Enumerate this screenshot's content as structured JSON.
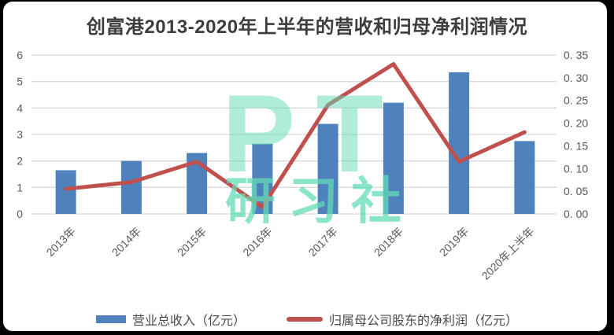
{
  "watermark": {
    "line1": "PT",
    "line2": "研习社"
  },
  "colors": {
    "bar": "#4f81bd",
    "line": "#c0504d",
    "watermark": "#63dbb7",
    "grid": "#d9d9d9",
    "axis_text": "#595959",
    "title_text": "#3d3d3d",
    "frame": "#000000",
    "card_bg": "#ffffff"
  },
  "chart_data": {
    "type": "bar",
    "subtype": "combo-bar-line",
    "title": "创富港2013-2020年上半年的营收和归母净利润情况",
    "categories": [
      "2013年",
      "2014年",
      "2015年",
      "2016年",
      "2017年",
      "2018年",
      "2019年",
      "2020年上半年"
    ],
    "series": [
      {
        "name": "营业总收入（亿元）",
        "type": "bar",
        "axis": "left",
        "color": "#4f81bd",
        "values": [
          1.65,
          2.0,
          2.3,
          2.65,
          3.4,
          4.2,
          5.35,
          2.75
        ]
      },
      {
        "name": "归属母公司股东的净利润（亿元）",
        "type": "line",
        "axis": "right",
        "color": "#c0504d",
        "values": [
          0.055,
          0.07,
          0.115,
          0.015,
          0.24,
          0.33,
          0.115,
          0.18
        ]
      }
    ],
    "left_axis": {
      "min": 0,
      "max": 6,
      "tick_labels": [
        "6",
        "5",
        "4",
        "3",
        "2",
        "1",
        "0"
      ]
    },
    "right_axis": {
      "min": 0,
      "max": 0.35,
      "tick_labels": [
        "0. 35",
        "0. 30",
        "0. 25",
        "0. 20",
        "0. 15",
        "0. 10",
        "0. 05",
        "0. 00"
      ]
    },
    "grid": true,
    "legend_position": "bottom",
    "xlabel": "",
    "ylabel": ""
  }
}
